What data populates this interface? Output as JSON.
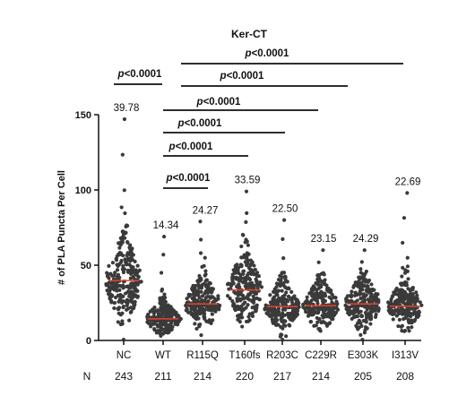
{
  "chart_data": {
    "type": "scatter",
    "title": "Ker-CT",
    "ylabel": "# of PLA Puncta Per Cell",
    "xlabel": "",
    "ylim": [
      0,
      150
    ],
    "yticks": [
      0,
      50,
      100,
      150
    ],
    "categories": [
      "NC",
      "WT",
      "R115Q",
      "T160fs",
      "R203C",
      "C229R",
      "E303K",
      "I313V"
    ],
    "means": [
      39.78,
      14.34,
      24.27,
      33.59,
      22.5,
      23.15,
      24.29,
      22.69
    ],
    "mean_labels": [
      "39.78",
      "14.34",
      "24.27",
      "33.59",
      "22.50",
      "23.15",
      "24.29",
      "22.69"
    ],
    "n_label": "N",
    "n_values": [
      "243",
      "211",
      "214",
      "220",
      "217",
      "214",
      "205",
      "208"
    ],
    "max_values": [
      147,
      69,
      79,
      99,
      80,
      60,
      60,
      98
    ],
    "point_color": "#3a3a3a",
    "mean_line_color": "#e8412c",
    "significance": [
      {
        "label": "p<0.0001",
        "from": "NC",
        "to": "WT"
      },
      {
        "label": "p<0.0001",
        "from": "WT",
        "to": "R115Q"
      },
      {
        "label": "p<0.0001",
        "from": "WT",
        "to": "T160fs"
      },
      {
        "label": "p<0.0001",
        "from": "WT",
        "to": "R203C"
      },
      {
        "label": "p<0.0001",
        "from": "WT",
        "to": "C229R"
      },
      {
        "label": "p<0.0001",
        "from": "WT",
        "to": "E303K"
      },
      {
        "label": "p<0.0001",
        "from": "WT",
        "to": "I313V"
      }
    ]
  }
}
